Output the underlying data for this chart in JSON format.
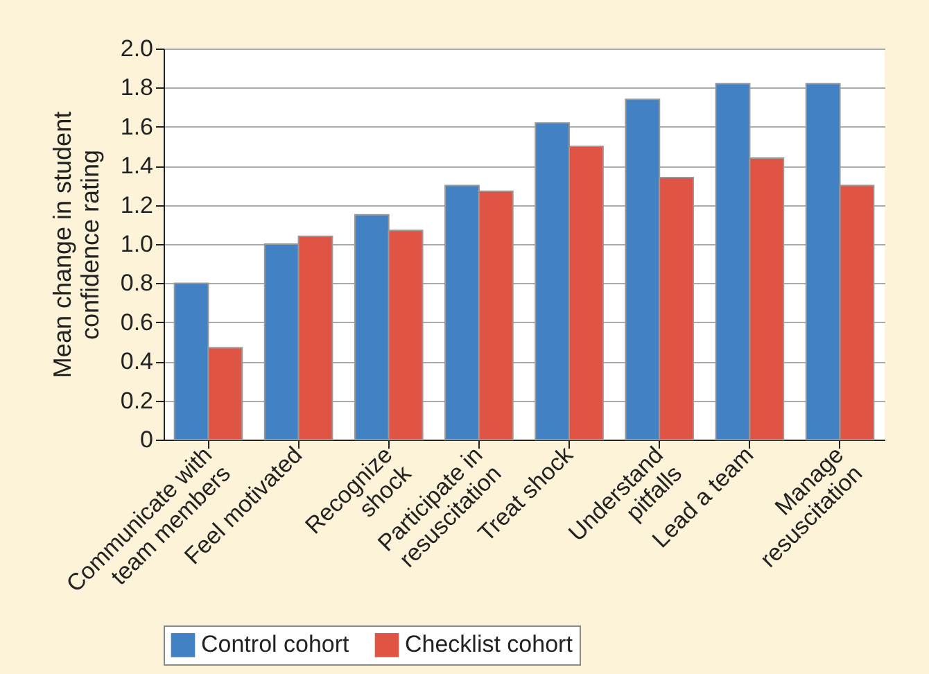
{
  "chart_data": {
    "type": "bar",
    "ylabel": "Mean change in student\nconfidence rating",
    "categories": [
      "Communicate with\nteam members",
      "Feel motivated",
      "Recognize\nshock",
      "Participate in\nresuscitation",
      "Treat shock",
      "Understand\npitfalls",
      "Lead a team",
      "Manage\nresuscitation"
    ],
    "series": [
      {
        "name": "Control cohort",
        "color": "#4281c3",
        "values": [
          0.8,
          1.0,
          1.15,
          1.3,
          1.62,
          1.74,
          1.82,
          1.82
        ]
      },
      {
        "name": "Checklist cohort",
        "color": "#e05445",
        "values": [
          0.47,
          1.04,
          1.07,
          1.27,
          1.5,
          1.34,
          1.44,
          1.3
        ]
      }
    ],
    "ylim": [
      0,
      2.0
    ],
    "yticks": [
      {
        "value": 0,
        "label": "0"
      },
      {
        "value": 0.2,
        "label": "0.2"
      },
      {
        "value": 0.4,
        "label": "0.4"
      },
      {
        "value": 0.6,
        "label": "0.6"
      },
      {
        "value": 0.8,
        "label": "0.8"
      },
      {
        "value": 1.0,
        "label": "1.0"
      },
      {
        "value": 1.2,
        "label": "1.2"
      },
      {
        "value": 1.4,
        "label": "1.4"
      },
      {
        "value": 1.6,
        "label": "1.6"
      },
      {
        "value": 1.8,
        "label": "1.8"
      },
      {
        "value": 2.0,
        "label": "2.0"
      }
    ],
    "grid": "y",
    "legend": "bottom"
  }
}
